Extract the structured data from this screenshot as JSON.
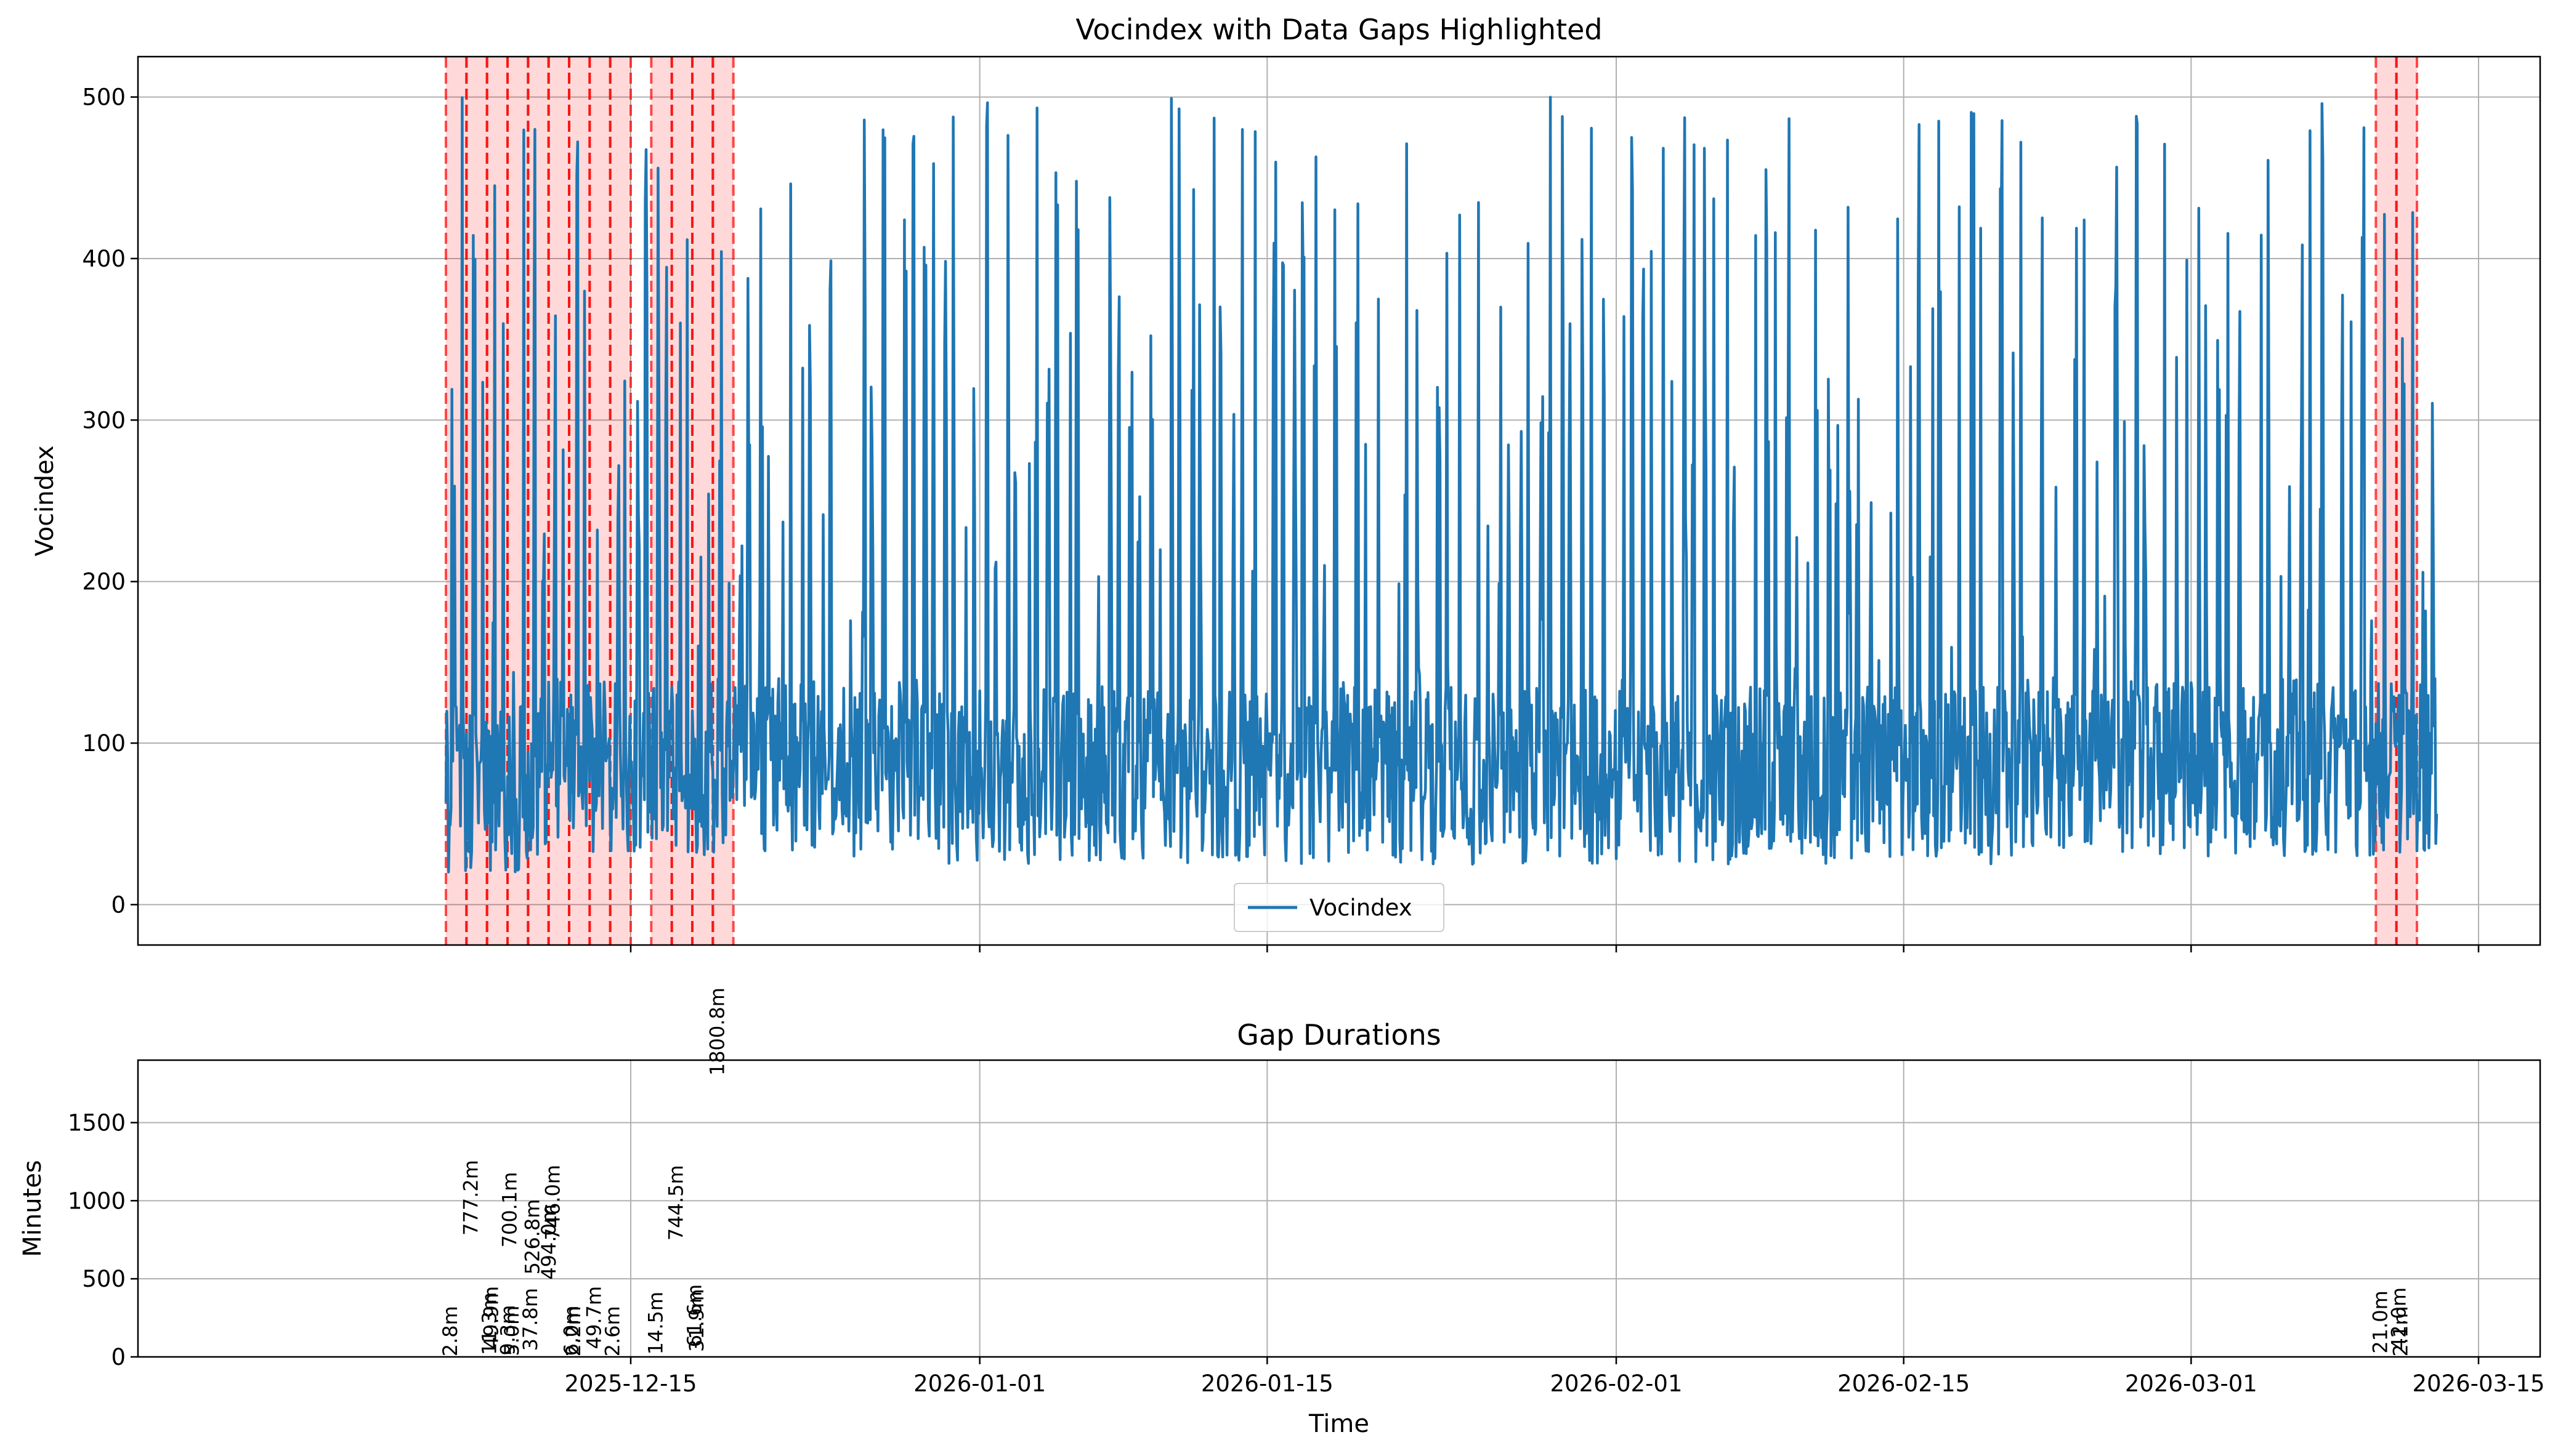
{
  "chart_data": [
    {
      "type": "line",
      "title": "Vocindex with Data Gaps Highlighted",
      "xlabel": "",
      "ylabel": "Vocindex",
      "ylim": [
        -25,
        525
      ],
      "yticks": [
        0,
        100,
        200,
        300,
        400,
        500
      ],
      "xlim": [
        "2025-11-21",
        "2026-03-18"
      ],
      "xticks": [
        "2025-12-15",
        "2026-01-01",
        "2026-01-15",
        "2026-02-01",
        "2026-02-15",
        "2026-03-01",
        "2026-03-15"
      ],
      "grid": true,
      "legend": {
        "position": "bottom-center",
        "entries": [
          "Vocindex"
        ]
      },
      "series": [
        {
          "name": "Vocindex",
          "color": "#1f77b4",
          "start": "2025-12-06",
          "end": "2026-03-13",
          "segments": [
            {
              "x": [
                "2025-12-06",
                "2025-12-10"
              ],
              "min": 0,
              "max": 500
            },
            {
              "x": [
                "2025-12-10",
                "2025-12-16"
              ],
              "min": 10,
              "max": 480
            },
            {
              "x": [
                "2025-12-16",
                "2025-12-29"
              ],
              "min": 10,
              "max": 500
            },
            {
              "x": [
                "2025-12-29",
                "2026-01-20"
              ],
              "min": 5,
              "max": 500
            },
            {
              "x": [
                "2026-01-20",
                "2026-02-20"
              ],
              "min": 5,
              "max": 500
            },
            {
              "x": [
                "2026-02-20",
                "2026-03-13"
              ],
              "min": 10,
              "max": 500
            }
          ]
        }
      ],
      "gap_spans": [
        [
          "2025-12-06",
          "2025-12-07"
        ],
        [
          "2025-12-07",
          "2025-12-08"
        ],
        [
          "2025-12-08",
          "2025-12-09"
        ],
        [
          "2025-12-09",
          "2025-12-10"
        ],
        [
          "2025-12-10",
          "2025-12-11"
        ],
        [
          "2025-12-11",
          "2025-12-12"
        ],
        [
          "2025-12-12",
          "2025-12-13"
        ],
        [
          "2025-12-13",
          "2025-12-14"
        ],
        [
          "2025-12-14",
          "2025-12-15"
        ],
        [
          "2025-12-16",
          "2025-12-17"
        ],
        [
          "2025-12-17",
          "2025-12-18"
        ],
        [
          "2025-12-18",
          "2025-12-19"
        ],
        [
          "2025-12-19",
          "2025-12-20"
        ],
        [
          "2026-03-10",
          "2026-03-11"
        ],
        [
          "2026-03-11",
          "2026-03-12"
        ]
      ],
      "gap_color": "#ff0000"
    },
    {
      "type": "bar",
      "title": "Gap Durations",
      "xlabel": "Time",
      "ylabel": "Minutes",
      "ylim": [
        0,
        1900
      ],
      "yticks": [
        0,
        500,
        1000,
        1500
      ],
      "xlim": [
        "2025-11-21",
        "2026-03-18"
      ],
      "xticks": [
        "2025-12-15",
        "2026-01-01",
        "2026-01-15",
        "2026-02-01",
        "2026-02-15",
        "2026-03-01",
        "2026-03-15"
      ],
      "grid": true,
      "gaps": [
        {
          "x": "2025-12-06",
          "minutes": 2.8,
          "label": "2.8m"
        },
        {
          "x": "2025-12-07",
          "minutes": 777.2,
          "label": "777.2m"
        },
        {
          "x": "2025-12-07",
          "minutes": 11.3,
          "label": "11.3m"
        },
        {
          "x": "2025-12-07",
          "minutes": 9.3,
          "label": "9.3m"
        },
        {
          "x": "2025-12-08",
          "minutes": 49.9,
          "label": "49.9m"
        },
        {
          "x": "2025-12-08",
          "minutes": 700.1,
          "label": "700.1m"
        },
        {
          "x": "2025-12-09",
          "minutes": 5.0,
          "label": "5.0m"
        },
        {
          "x": "2025-12-09",
          "minutes": 37.8,
          "label": "37.8m"
        },
        {
          "x": "2025-12-09",
          "minutes": 494.0,
          "label": "494.0m"
        },
        {
          "x": "2025-12-10",
          "minutes": 526.8,
          "label": "526.8m"
        },
        {
          "x": "2025-12-11",
          "minutes": 746.0,
          "label": "746.0m"
        },
        {
          "x": "2025-12-11",
          "minutes": 6.0,
          "label": "6.0m"
        },
        {
          "x": "2025-12-12",
          "minutes": 2.2,
          "label": "2.2m"
        },
        {
          "x": "2025-12-13",
          "minutes": 49.7,
          "label": "49.7m"
        },
        {
          "x": "2025-12-13",
          "minutes": 2.6,
          "label": "2.6m"
        },
        {
          "x": "2025-12-16",
          "minutes": 14.5,
          "label": "14.5m"
        },
        {
          "x": "2025-12-17",
          "minutes": 744.5,
          "label": "744.5m"
        },
        {
          "x": "2025-12-17",
          "minutes": 61.6,
          "label": "61.6m"
        },
        {
          "x": "2025-12-18",
          "minutes": 31.9,
          "label": "31.9m"
        },
        {
          "x": "2025-12-19",
          "minutes": 1800.8,
          "label": "1800.8m"
        },
        {
          "x": "2026-03-10",
          "minutes": 21.0,
          "label": "21.0m"
        },
        {
          "x": "2026-03-10",
          "minutes": 42.0,
          "label": "42.0m"
        },
        {
          "x": "2026-03-11",
          "minutes": 2.1,
          "label": "2.1m"
        }
      ]
    }
  ]
}
